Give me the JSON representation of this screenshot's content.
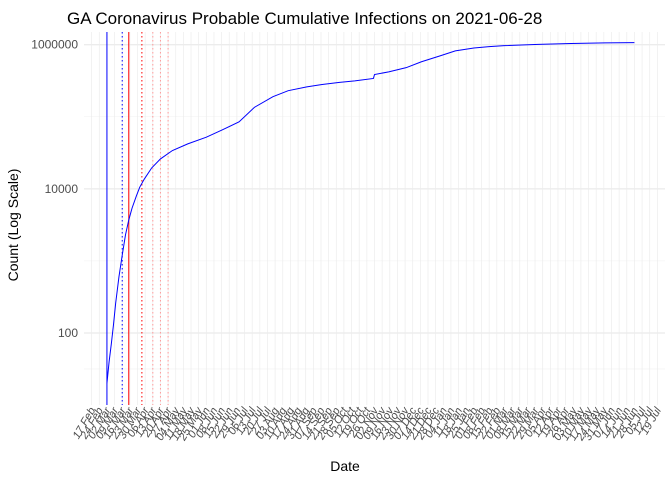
{
  "chart_data": {
    "type": "line",
    "title": "GA Coronavirus Probable Cumulative Infections on 2021-06-28",
    "xlabel": "Date",
    "ylabel": "Count (Log Scale)",
    "y_scale": "log",
    "ylim": [
      10,
      1500000
    ],
    "xlim": [
      "2020-02-10",
      "2021-07-26"
    ],
    "grid": true,
    "legend": "none",
    "y_ticks": [
      {
        "value": 100,
        "label": "100"
      },
      {
        "value": 10000,
        "label": "10000"
      },
      {
        "value": 1000000,
        "label": "1000000"
      }
    ],
    "x_tick_labels": [
      {
        "date": "2020-02-17",
        "label": "17 Feb"
      },
      {
        "date": "2020-02-24",
        "label": "24 Feb"
      },
      {
        "date": "2020-03-02",
        "label": "02 Mar"
      },
      {
        "date": "2020-03-09",
        "label": "09 Mar"
      },
      {
        "date": "2020-03-16",
        "label": "16 Mar"
      },
      {
        "date": "2020-03-23",
        "label": "23 Mar"
      },
      {
        "date": "2020-03-30",
        "label": "30 Mar"
      },
      {
        "date": "2020-04-06",
        "label": "06 Apr"
      },
      {
        "date": "2020-04-13",
        "label": "13 Apr"
      },
      {
        "date": "2020-04-20",
        "label": "20 Apr"
      },
      {
        "date": "2020-04-27",
        "label": "27 Apr"
      },
      {
        "date": "2020-05-04",
        "label": "04 May"
      },
      {
        "date": "2020-05-11",
        "label": "11 May"
      },
      {
        "date": "2020-05-18",
        "label": "18 May"
      },
      {
        "date": "2020-05-25",
        "label": "25 May"
      },
      {
        "date": "2020-06-01",
        "label": "01 Jun"
      },
      {
        "date": "2020-06-08",
        "label": "08 Jun"
      },
      {
        "date": "2020-06-15",
        "label": "15 Jun"
      },
      {
        "date": "2020-06-22",
        "label": "22 Jun"
      },
      {
        "date": "2020-06-29",
        "label": "29 Jun"
      },
      {
        "date": "2020-07-06",
        "label": "06 Jul"
      },
      {
        "date": "2020-07-13",
        "label": "13 Jul"
      },
      {
        "date": "2020-07-20",
        "label": "20 Jul"
      },
      {
        "date": "2020-07-27",
        "label": "27 Jul"
      },
      {
        "date": "2020-08-03",
        "label": "03 Aug"
      },
      {
        "date": "2020-08-10",
        "label": "10 Aug"
      },
      {
        "date": "2020-08-17",
        "label": "17 Aug"
      },
      {
        "date": "2020-08-24",
        "label": "24 Aug"
      },
      {
        "date": "2020-08-31",
        "label": "31 Aug"
      },
      {
        "date": "2020-09-07",
        "label": "07 Sep"
      },
      {
        "date": "2020-09-14",
        "label": "14 Sep"
      },
      {
        "date": "2020-09-21",
        "label": "21 Sep"
      },
      {
        "date": "2020-09-28",
        "label": "28 Sep"
      },
      {
        "date": "2020-10-05",
        "label": "05 Oct"
      },
      {
        "date": "2020-10-12",
        "label": "12 Oct"
      },
      {
        "date": "2020-10-19",
        "label": "19 Oct"
      },
      {
        "date": "2020-10-26",
        "label": "26 Oct"
      },
      {
        "date": "2020-11-02",
        "label": "02 Nov"
      },
      {
        "date": "2020-11-09",
        "label": "09 Nov"
      },
      {
        "date": "2020-11-16",
        "label": "16 Nov"
      },
      {
        "date": "2020-11-23",
        "label": "23 Nov"
      },
      {
        "date": "2020-11-30",
        "label": "30 Nov"
      },
      {
        "date": "2020-12-07",
        "label": "07 Dec"
      },
      {
        "date": "2020-12-14",
        "label": "14 Dec"
      },
      {
        "date": "2020-12-21",
        "label": "21 Dec"
      },
      {
        "date": "2020-12-28",
        "label": "28 Dec"
      },
      {
        "date": "2021-01-04",
        "label": "04 Jan"
      },
      {
        "date": "2021-01-11",
        "label": "11 Jan"
      },
      {
        "date": "2021-01-18",
        "label": "18 Jan"
      },
      {
        "date": "2021-01-25",
        "label": "25 Jan"
      },
      {
        "date": "2021-02-01",
        "label": "01 Feb"
      },
      {
        "date": "2021-02-08",
        "label": "08 Feb"
      },
      {
        "date": "2021-02-15",
        "label": "15 Feb"
      },
      {
        "date": "2021-02-22",
        "label": "22 Feb"
      },
      {
        "date": "2021-03-01",
        "label": "01 Mar"
      },
      {
        "date": "2021-03-08",
        "label": "08 Mar"
      },
      {
        "date": "2021-03-15",
        "label": "15 Mar"
      },
      {
        "date": "2021-03-22",
        "label": "22 Mar"
      },
      {
        "date": "2021-03-29",
        "label": "29 Mar"
      },
      {
        "date": "2021-04-05",
        "label": "05 Apr"
      },
      {
        "date": "2021-04-12",
        "label": "12 Apr"
      },
      {
        "date": "2021-04-19",
        "label": "19 Apr"
      },
      {
        "date": "2021-04-26",
        "label": "26 Apr"
      },
      {
        "date": "2021-05-03",
        "label": "03 May"
      },
      {
        "date": "2021-05-10",
        "label": "10 May"
      },
      {
        "date": "2021-05-17",
        "label": "17 May"
      },
      {
        "date": "2021-05-24",
        "label": "24 May"
      },
      {
        "date": "2021-05-31",
        "label": "31 May"
      },
      {
        "date": "2021-06-07",
        "label": "07 Jun"
      },
      {
        "date": "2021-06-14",
        "label": "14 Jun"
      },
      {
        "date": "2021-06-21",
        "label": "21 Jun"
      },
      {
        "date": "2021-06-28",
        "label": "28 Jun"
      },
      {
        "date": "2021-07-05",
        "label": "05 Jul"
      },
      {
        "date": "2021-07-12",
        "label": "12 Jul"
      },
      {
        "date": "2021-07-19",
        "label": "19 Jul"
      }
    ],
    "series": [
      {
        "color": "#0000ff",
        "points": [
          [
            "2020-03-02",
            20
          ],
          [
            "2020-03-04",
            40
          ],
          [
            "2020-03-06",
            70
          ],
          [
            "2020-03-08",
            130
          ],
          [
            "2020-03-10",
            260
          ],
          [
            "2020-03-13",
            600
          ],
          [
            "2020-03-16",
            1200
          ],
          [
            "2020-03-19",
            2300
          ],
          [
            "2020-03-22",
            3700
          ],
          [
            "2020-03-25",
            5400
          ],
          [
            "2020-03-29",
            8000
          ],
          [
            "2020-04-01",
            10500
          ],
          [
            "2020-04-05",
            13500
          ],
          [
            "2020-04-12",
            19500
          ],
          [
            "2020-04-20",
            26000
          ],
          [
            "2020-05-01",
            34000
          ],
          [
            "2020-05-15",
            42000
          ],
          [
            "2020-06-01",
            52000
          ],
          [
            "2020-06-15",
            65000
          ],
          [
            "2020-07-01",
            85000
          ],
          [
            "2020-07-15",
            135000
          ],
          [
            "2020-08-01",
            190000
          ],
          [
            "2020-08-15",
            230000
          ],
          [
            "2020-09-01",
            260000
          ],
          [
            "2020-09-15",
            280000
          ],
          [
            "2020-10-01",
            300000
          ],
          [
            "2020-10-15",
            315000
          ],
          [
            "2020-11-01",
            340000
          ],
          [
            "2020-11-02",
            385000
          ],
          [
            "2020-11-15",
            420000
          ],
          [
            "2020-12-01",
            480000
          ],
          [
            "2020-12-15",
            580000
          ],
          [
            "2021-01-01",
            700000
          ],
          [
            "2021-01-15",
            820000
          ],
          [
            "2021-02-01",
            900000
          ],
          [
            "2021-02-15",
            940000
          ],
          [
            "2021-03-01",
            970000
          ],
          [
            "2021-04-01",
            1010000
          ],
          [
            "2021-05-01",
            1040000
          ],
          [
            "2021-06-01",
            1060000
          ],
          [
            "2021-06-28",
            1070000
          ]
        ]
      }
    ],
    "vertical_lines": [
      {
        "date": "2020-03-02",
        "color": "#0000ff",
        "style": "solid"
      },
      {
        "date": "2020-03-16",
        "color": "#0000ff",
        "style": "dotted"
      },
      {
        "date": "2020-03-22",
        "color": "#ff0000",
        "style": "solid"
      },
      {
        "date": "2020-04-03",
        "color": "#ff0000",
        "style": "dotted"
      },
      {
        "date": "2020-04-13",
        "color": "#ff9999",
        "style": "dotted"
      },
      {
        "date": "2020-04-20",
        "color": "#ff9999",
        "style": "dotted"
      },
      {
        "date": "2020-04-27",
        "color": "#ff9999",
        "style": "dotted"
      }
    ]
  }
}
